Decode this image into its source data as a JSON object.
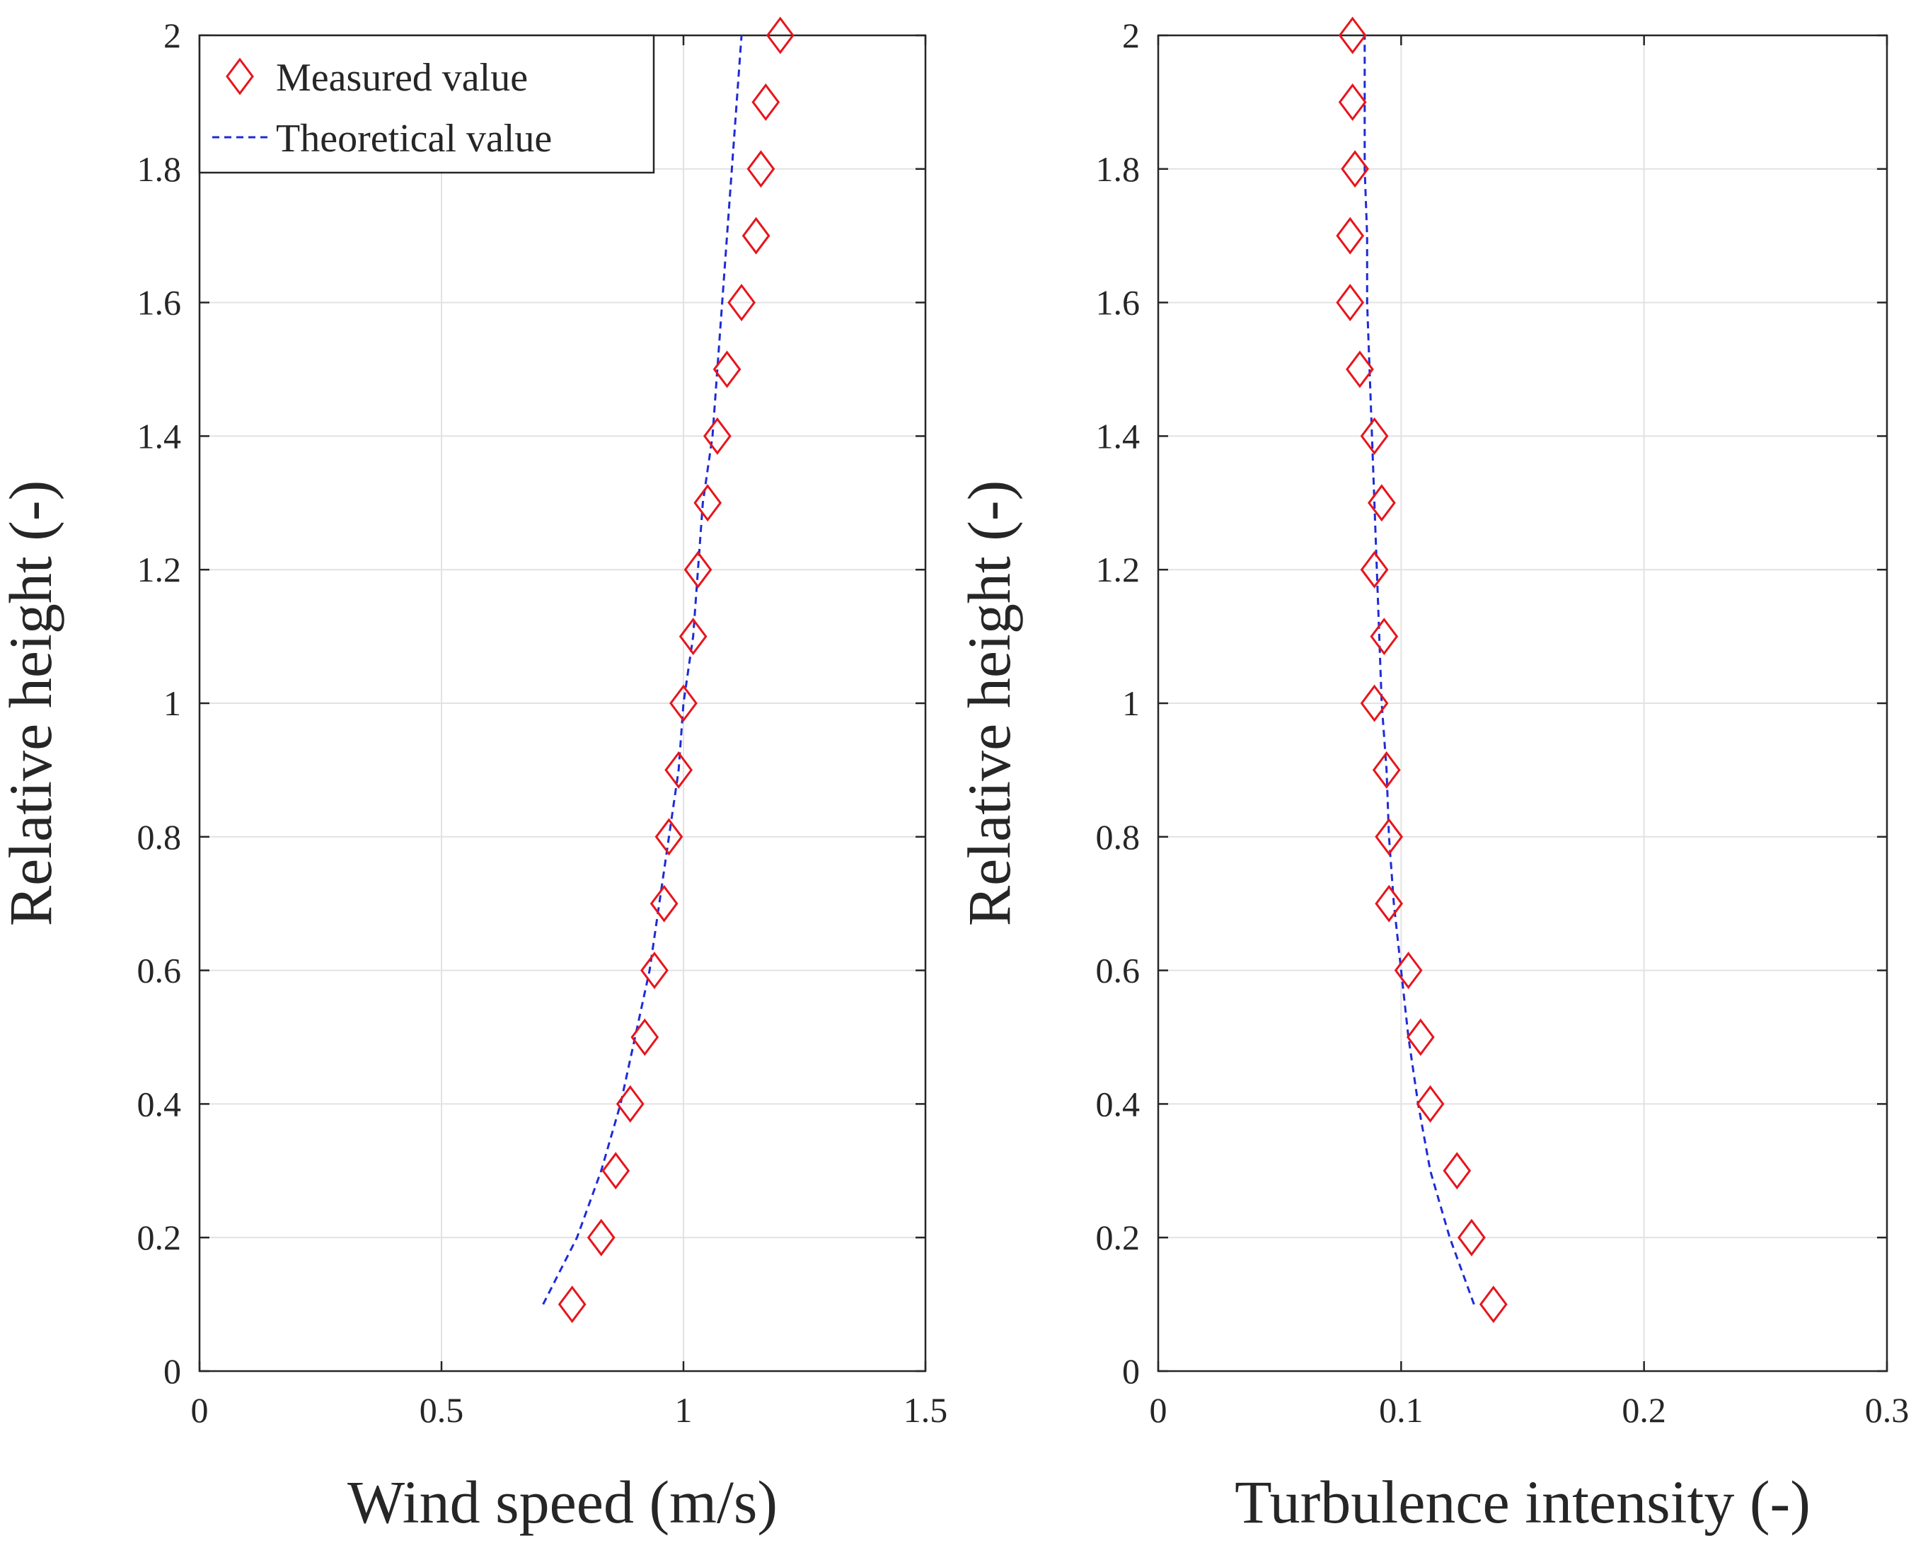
{
  "colors": {
    "measured": "#e8141b",
    "theoretical": "#1f2bd6",
    "axis": "#262626",
    "grid": "#e2e2e2"
  },
  "legend": {
    "measured_label": "Measured value",
    "theoretical_label": "Theoretical value",
    "location": "top-left of left panel"
  },
  "chart_data": [
    {
      "type": "scatter",
      "xlabel": "Wind speed (m/s)",
      "ylabel": "Relative height (-)",
      "xlim": [
        0,
        1.5
      ],
      "ylim": [
        0,
        2
      ],
      "xticks": [
        0,
        0.5,
        1,
        1.5
      ],
      "xtick_labels": [
        "0",
        "0.5",
        "1",
        "1.5"
      ],
      "yticks": [
        0,
        0.2,
        0.4,
        0.6,
        0.8,
        1,
        1.2,
        1.4,
        1.6,
        1.8,
        2
      ],
      "ytick_labels": [
        "0",
        "0.2",
        "0.4",
        "0.6",
        "0.8",
        "1",
        "1.2",
        "1.4",
        "1.6",
        "1.8",
        "2"
      ],
      "grid": true,
      "series": [
        {
          "name": "Measured value",
          "style": "diamond-markers",
          "x": [
            0.77,
            0.83,
            0.86,
            0.89,
            0.92,
            0.94,
            0.96,
            0.97,
            0.99,
            1.0,
            1.02,
            1.03,
            1.05,
            1.07,
            1.09,
            1.12,
            1.15,
            1.16,
            1.17,
            1.2
          ],
          "y": [
            0.1,
            0.2,
            0.3,
            0.4,
            0.5,
            0.6,
            0.7,
            0.8,
            0.9,
            1.0,
            1.1,
            1.2,
            1.3,
            1.4,
            1.5,
            1.6,
            1.7,
            1.8,
            1.9,
            2.0
          ]
        },
        {
          "name": "Theoretical value",
          "style": "dashed-line",
          "x": [
            0.71,
            0.78,
            0.83,
            0.87,
            0.9,
            0.93,
            0.95,
            0.97,
            0.99,
            1.0,
            1.02,
            1.03,
            1.04,
            1.06,
            1.07,
            1.08,
            1.09,
            1.1,
            1.11,
            1.12
          ],
          "y": [
            0.1,
            0.2,
            0.3,
            0.4,
            0.5,
            0.6,
            0.7,
            0.8,
            0.9,
            1.0,
            1.1,
            1.2,
            1.3,
            1.4,
            1.5,
            1.6,
            1.7,
            1.8,
            1.9,
            2.0
          ]
        }
      ]
    },
    {
      "type": "scatter",
      "xlabel": "Turbulence intensity (-)",
      "ylabel": "Relative height (-)",
      "xlim": [
        0,
        0.3
      ],
      "ylim": [
        0,
        2
      ],
      "xticks": [
        0,
        0.1,
        0.2,
        0.3
      ],
      "xtick_labels": [
        "0",
        "0.1",
        "0.2",
        "0.3"
      ],
      "yticks": [
        0,
        0.2,
        0.4,
        0.6,
        0.8,
        1,
        1.2,
        1.4,
        1.6,
        1.8,
        2
      ],
      "ytick_labels": [
        "0",
        "0.2",
        "0.4",
        "0.6",
        "0.8",
        "1",
        "1.2",
        "1.4",
        "1.6",
        "1.8",
        "2"
      ],
      "grid": true,
      "series": [
        {
          "name": "Measured value",
          "style": "diamond-markers",
          "x": [
            0.138,
            0.129,
            0.123,
            0.112,
            0.108,
            0.103,
            0.095,
            0.095,
            0.094,
            0.089,
            0.093,
            0.089,
            0.092,
            0.089,
            0.083,
            0.079,
            0.079,
            0.081,
            0.08,
            0.08
          ],
          "y": [
            0.1,
            0.2,
            0.3,
            0.4,
            0.5,
            0.6,
            0.7,
            0.8,
            0.9,
            1.0,
            1.1,
            1.2,
            1.3,
            1.4,
            1.5,
            1.6,
            1.7,
            1.8,
            1.9,
            2.0
          ]
        },
        {
          "name": "Theoretical value",
          "style": "dashed-line",
          "x": [
            0.13,
            0.12,
            0.112,
            0.107,
            0.103,
            0.1,
            0.097,
            0.095,
            0.094,
            0.092,
            0.091,
            0.09,
            0.089,
            0.088,
            0.087,
            0.086,
            0.086,
            0.085,
            0.085,
            0.085
          ],
          "y": [
            0.1,
            0.2,
            0.3,
            0.4,
            0.5,
            0.6,
            0.7,
            0.8,
            0.9,
            1.0,
            1.1,
            1.2,
            1.3,
            1.4,
            1.5,
            1.6,
            1.7,
            1.8,
            1.9,
            2.0
          ]
        }
      ]
    }
  ]
}
